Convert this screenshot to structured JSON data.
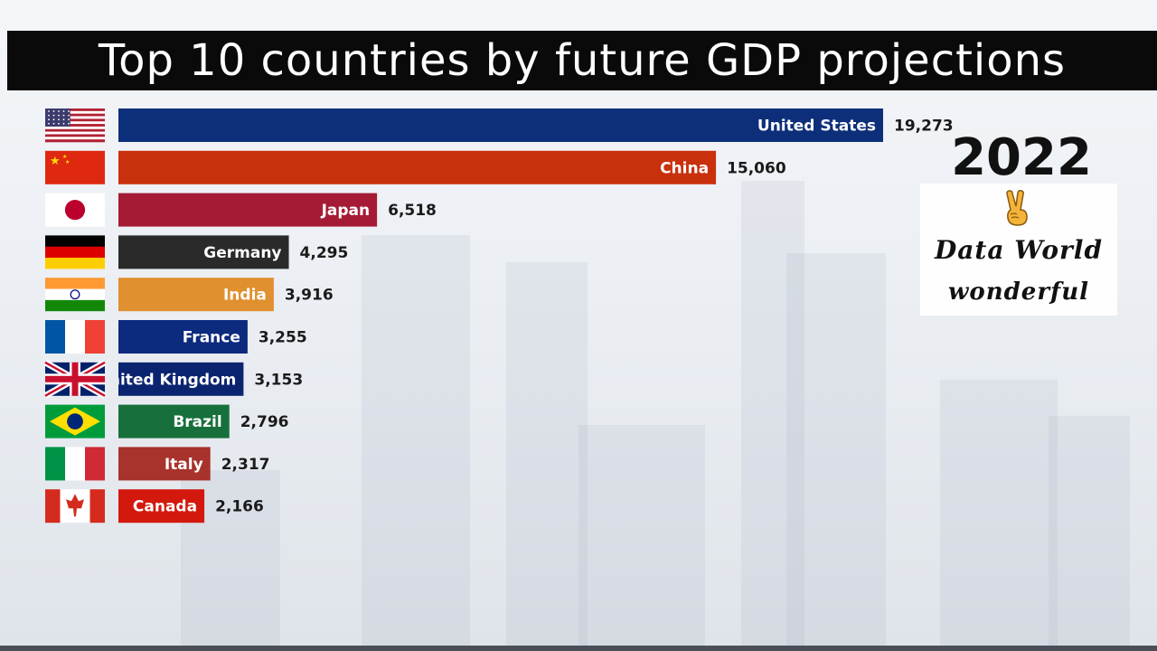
{
  "title": "Top 10 countries by future GDP projections",
  "chart_data": {
    "type": "bar",
    "orientation": "horizontal",
    "title": "Top 10 countries by future GDP projections",
    "categories": [
      "United States",
      "China",
      "Japan",
      "Germany",
      "India",
      "France",
      "United Kingdom",
      "Brazil",
      "Italy",
      "Canada"
    ],
    "values": [
      19273,
      15060,
      6518,
      4295,
      3916,
      3255,
      3153,
      2796,
      2317,
      2166
    ],
    "value_labels": [
      "19,273",
      "15,060",
      "6,518",
      "4,295",
      "3,916",
      "3,255",
      "3,153",
      "2,796",
      "2,317",
      "2,166"
    ],
    "bar_colors": [
      "#0d2f7a",
      "#c9300c",
      "#a51b35",
      "#2a2a2a",
      "#e0902f",
      "#0c2a7e",
      "#0b2470",
      "#17703b",
      "#a8322c",
      "#d3190d"
    ],
    "flags": [
      "usa-flag-icon",
      "china-flag-icon",
      "japan-flag-icon",
      "germany-flag-icon",
      "india-flag-icon",
      "france-flag-icon",
      "uk-flag-icon",
      "brazil-flag-icon",
      "italy-flag-icon",
      "canada-flag-icon"
    ],
    "xlim": [
      0,
      19273
    ],
    "grid": false,
    "legend": "none"
  },
  "year": "2022",
  "brand": {
    "line1": "Data World",
    "line2": "wonderful"
  },
  "badge_icon": "victory-hand-icon"
}
